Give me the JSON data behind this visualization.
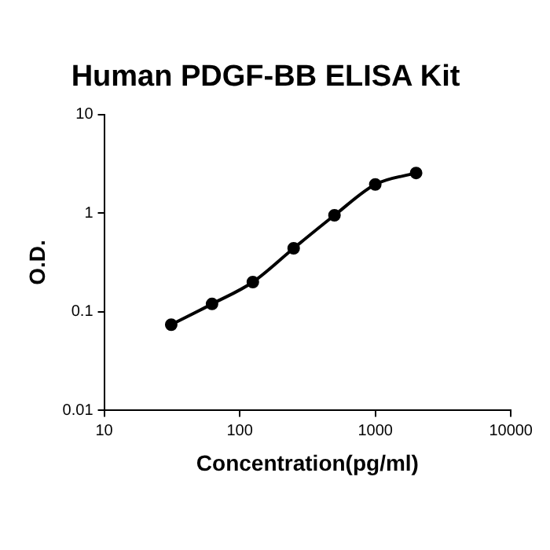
{
  "chart_data": {
    "type": "line",
    "title": "Human PDGF-BB ELISA Kit",
    "xlabel": "Concentration(pg/ml)",
    "ylabel": "O.D.",
    "x": [
      31.25,
      62.5,
      125,
      250,
      500,
      1000,
      2000
    ],
    "series": [
      {
        "color": "#000000",
        "values": [
          0.074,
          0.12,
          0.2,
          0.44,
          0.95,
          1.95,
          2.55
        ]
      }
    ],
    "log": "xy",
    "xlim": [
      10,
      10000
    ],
    "ylim": [
      0.01,
      10
    ],
    "xticks": [
      10,
      100,
      1000,
      10000
    ],
    "yticks": [
      0.01,
      0.1,
      1,
      10
    ],
    "grid": false,
    "legend": false,
    "marker": "circle",
    "line_style": "solid"
  }
}
